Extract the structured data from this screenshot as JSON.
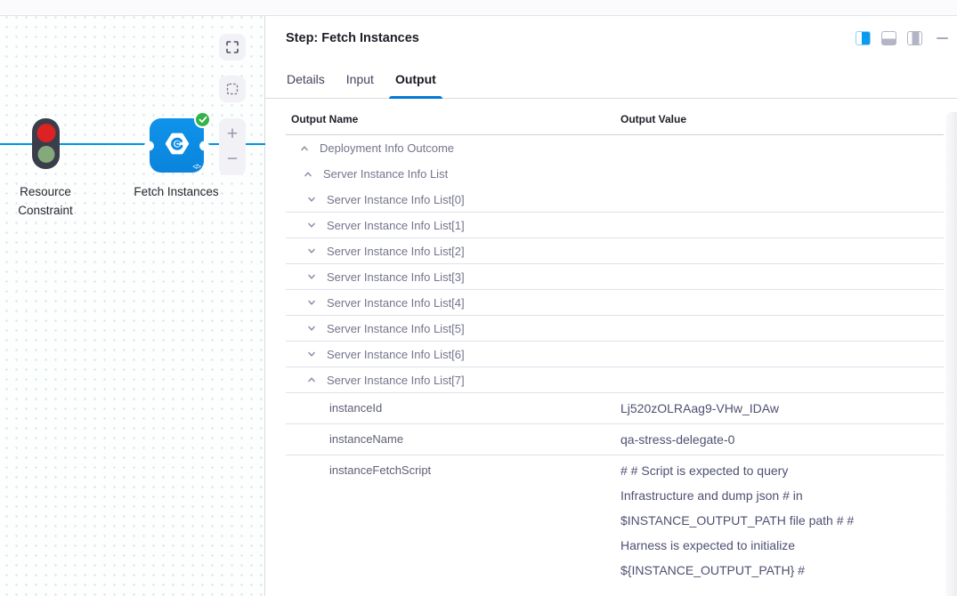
{
  "colors": {
    "edge_blue": "#0092e4",
    "node_blue": "#0b8ce4",
    "tab_accent": "#0278d5",
    "success_green": "#35b24b"
  },
  "canvas": {
    "nodes": [
      {
        "id": "resource-constraint",
        "label": "Resource Constraint",
        "type": "traffic-light"
      },
      {
        "id": "fetch-instances",
        "label": "Fetch Instances",
        "type": "step",
        "status": "success"
      }
    ],
    "controls": {
      "fullscreen": "fullscreen-icon",
      "marquee": "marquee-select-icon",
      "zoom_in_label": "+",
      "zoom_out_label": "−"
    }
  },
  "panel": {
    "title": "Step: Fetch Instances",
    "actions": [
      "layout-split-right",
      "layout-split-bottom",
      "layout-split-inset",
      "minimize"
    ],
    "tabs": [
      {
        "label": "Details",
        "active": false
      },
      {
        "label": "Input",
        "active": false
      },
      {
        "label": "Output",
        "active": true
      }
    ],
    "table": {
      "columns": [
        "Output Name",
        "Output Value"
      ],
      "rows": [
        {
          "kind": "tree",
          "level": 0,
          "expanded": true,
          "label": "Deployment Info Outcome",
          "divider": false
        },
        {
          "kind": "tree",
          "level": 1,
          "expanded": true,
          "label": "Server Instance Info List",
          "divider": false
        },
        {
          "kind": "tree",
          "level": 2,
          "expanded": false,
          "label": "Server Instance Info List[0]",
          "divider": true
        },
        {
          "kind": "tree",
          "level": 2,
          "expanded": false,
          "label": "Server Instance Info List[1]",
          "divider": true
        },
        {
          "kind": "tree",
          "level": 2,
          "expanded": false,
          "label": "Server Instance Info List[2]",
          "divider": true
        },
        {
          "kind": "tree",
          "level": 2,
          "expanded": false,
          "label": "Server Instance Info List[3]",
          "divider": true
        },
        {
          "kind": "tree",
          "level": 2,
          "expanded": false,
          "label": "Server Instance Info List[4]",
          "divider": true
        },
        {
          "kind": "tree",
          "level": 2,
          "expanded": false,
          "label": "Server Instance Info List[5]",
          "divider": true
        },
        {
          "kind": "tree",
          "level": 2,
          "expanded": false,
          "label": "Server Instance Info List[6]",
          "divider": true
        },
        {
          "kind": "tree",
          "level": 2,
          "expanded": true,
          "label": "Server Instance Info List[7]",
          "divider": true
        },
        {
          "kind": "kv",
          "label": "instanceId",
          "value": "Lj520zOLRAag9-VHw_IDAw",
          "divider": true
        },
        {
          "kind": "kv",
          "label": "instanceName",
          "value": "qa-stress-delegate-0",
          "divider": true
        },
        {
          "kind": "kv",
          "label": "instanceFetchScript",
          "value": "# # Script is expected to query Infrastructure and dump json # in $INSTANCE_OUTPUT_PATH file path # # Harness is expected to initialize ${INSTANCE_OUTPUT_PATH} #",
          "divider": false
        }
      ]
    }
  }
}
